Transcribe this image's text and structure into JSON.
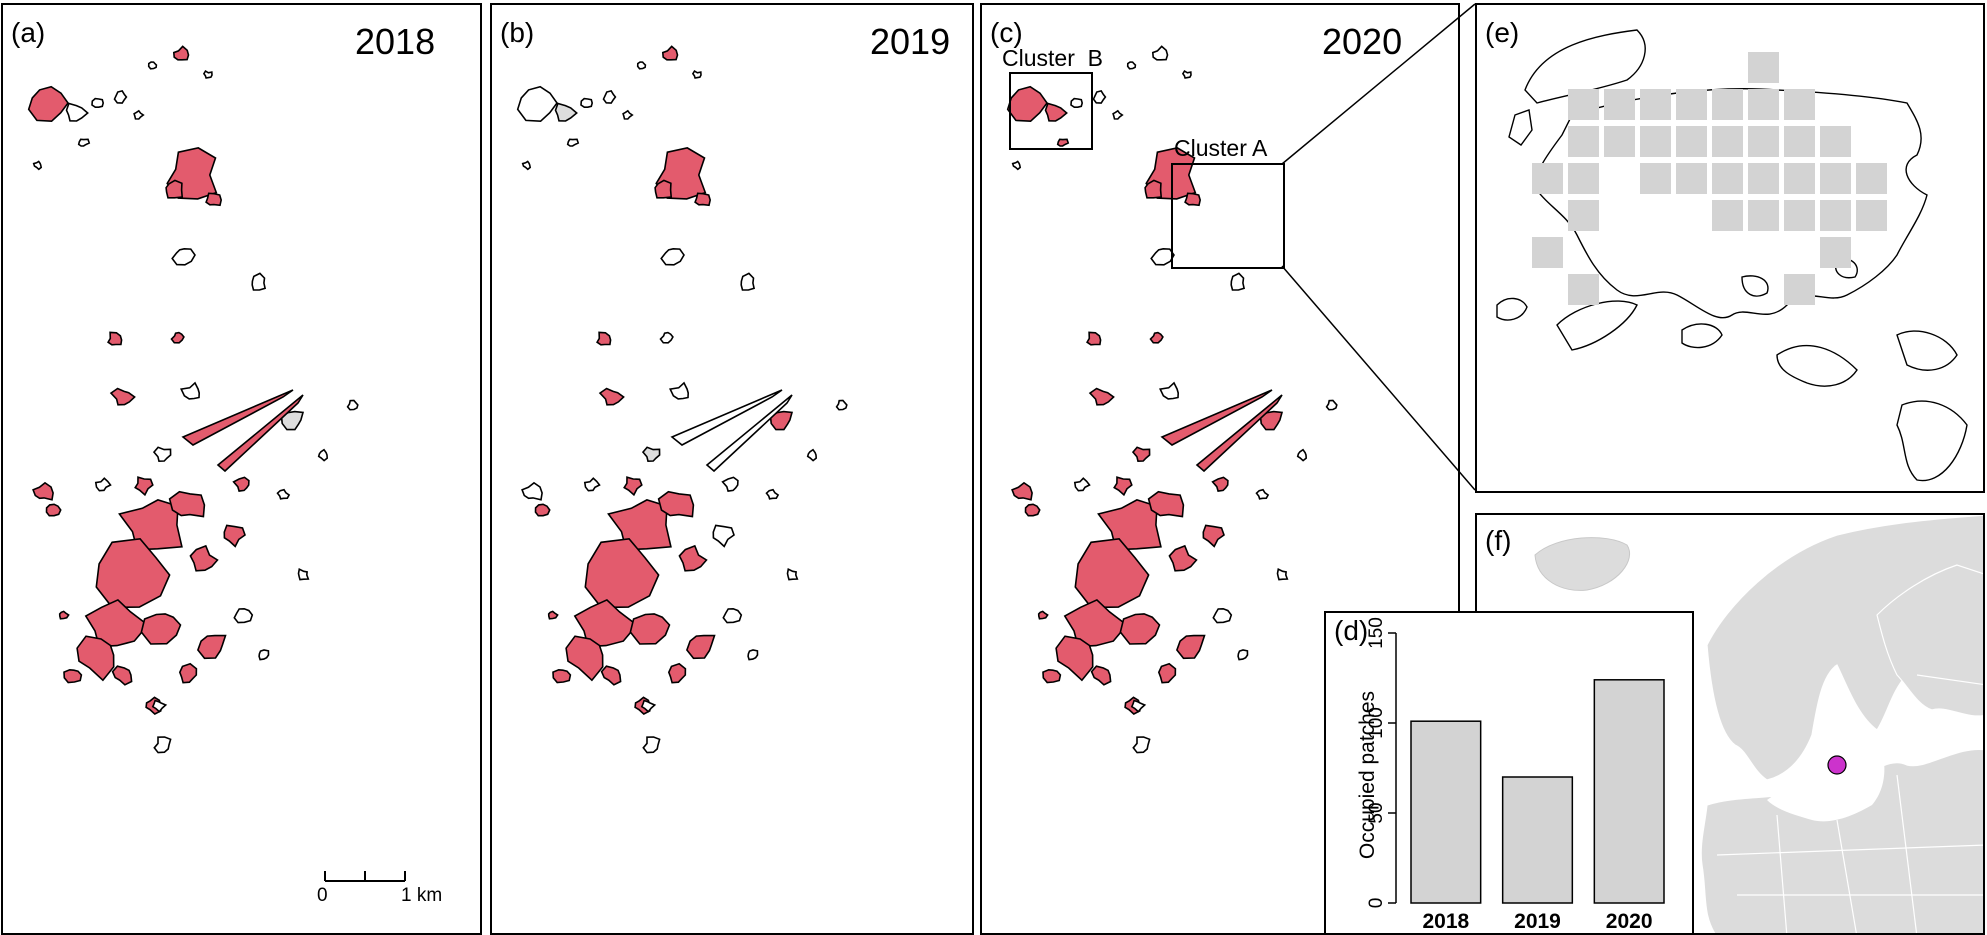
{
  "panels": {
    "a": {
      "label": "(a)",
      "year": "2018"
    },
    "b": {
      "label": "(b)",
      "year": "2019"
    },
    "c": {
      "label": "(c)",
      "year": "2020",
      "cluster_a": "Cluster A",
      "cluster_b": "Cluster  B"
    },
    "d": {
      "label": "(d)"
    },
    "e": {
      "label": "(e)"
    },
    "f": {
      "label": "(f)"
    }
  },
  "scale_bar": {
    "start": "0",
    "end": "1 km"
  },
  "chart_data": {
    "type": "bar",
    "categories": [
      "2018",
      "2019",
      "2020"
    ],
    "values": [
      101,
      70,
      124
    ],
    "ylabel": "Occupied patches",
    "ylim": [
      0,
      150
    ],
    "yticks": [
      0,
      50,
      100,
      150
    ]
  },
  "colors": {
    "occupied": "#e35b6d",
    "unoccupied": "#ffffff",
    "surveyed_gray": "#dddddd",
    "bar_fill": "#d3d3d3",
    "study_site_marker": "#cc33cc"
  }
}
